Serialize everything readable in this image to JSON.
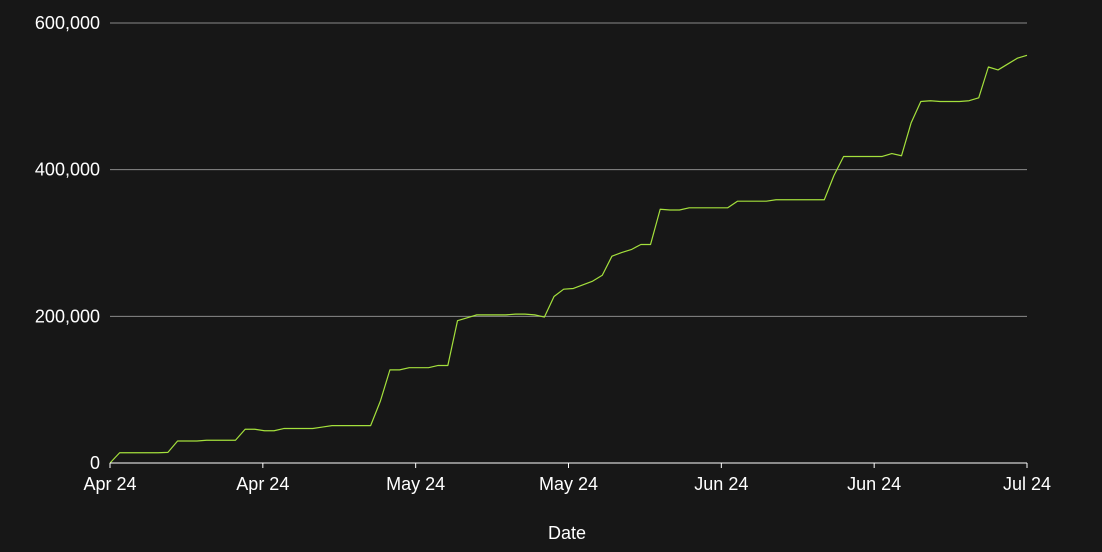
{
  "chart_data": {
    "type": "line",
    "xlabel": "Date",
    "ylabel": "",
    "ylim": [
      0,
      600000
    ],
    "y_ticks": [
      0,
      200000,
      400000,
      600000
    ],
    "y_tick_labels": [
      "0",
      "200,000",
      "400,000",
      "600,000"
    ],
    "x_tick_labels": [
      "Apr 24",
      "Apr 24",
      "May 24",
      "May 24",
      "Jun 24",
      "Jun 24",
      "Jul 24"
    ],
    "grid": "horizontal",
    "colors": {
      "background": "#171717",
      "line": "#a4e03c",
      "grid": "#8a8a8a",
      "axis": "#ffffff",
      "text": "#ffffff"
    },
    "series": [
      {
        "values": [
          0,
          14000,
          14000,
          14000,
          14000,
          14000,
          14500,
          30000,
          30000,
          30000,
          31000,
          31000,
          31000,
          31000,
          46000,
          46000,
          44000,
          44000,
          47000,
          47000,
          47000,
          47000,
          49000,
          51000,
          51000,
          51000,
          51000,
          51000,
          84000,
          127000,
          127000,
          130000,
          130000,
          130000,
          133000,
          133000,
          194000,
          198000,
          202000,
          202000,
          202000,
          202000,
          203000,
          203000,
          202000,
          199000,
          227000,
          237000,
          238000,
          243000,
          248000,
          256000,
          282000,
          287000,
          291000,
          298000,
          298000,
          346000,
          345000,
          345000,
          348000,
          348000,
          348000,
          348000,
          348000,
          357000,
          357000,
          357000,
          357000,
          359000,
          359000,
          359000,
          359000,
          359000,
          359000,
          392000,
          418000,
          418000,
          418000,
          418000,
          418000,
          422000,
          419000,
          464000,
          493000,
          494000,
          493000,
          493000,
          493000,
          494000,
          498000,
          540000,
          536000,
          544000,
          552000,
          556000
        ]
      }
    ]
  }
}
